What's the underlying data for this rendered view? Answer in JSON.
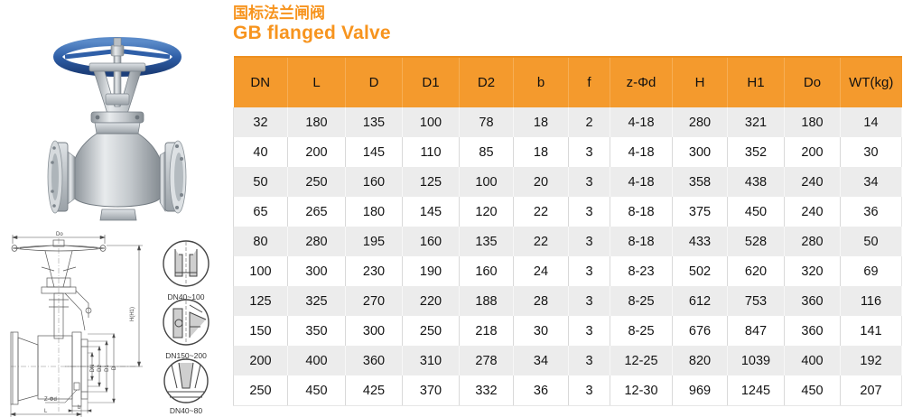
{
  "title": {
    "zh": "国标法兰闸阀",
    "en": "GB flanged Valve",
    "color": "#f7941e"
  },
  "table": {
    "header_bg": "#f49a2d",
    "stripe_bg": "#ececec",
    "columns": [
      "DN",
      "L",
      "D",
      "D1",
      "D2",
      "b",
      "f",
      "z-Φd",
      "H",
      "H1",
      "Do",
      "WT(kg)"
    ],
    "rows": [
      [
        "32",
        "180",
        "135",
        "100",
        "78",
        "18",
        "2",
        "4-18",
        "280",
        "321",
        "180",
        "14"
      ],
      [
        "40",
        "200",
        "145",
        "110",
        "85",
        "18",
        "3",
        "4-18",
        "300",
        "352",
        "200",
        "30"
      ],
      [
        "50",
        "250",
        "160",
        "125",
        "100",
        "20",
        "3",
        "4-18",
        "358",
        "438",
        "240",
        "34"
      ],
      [
        "65",
        "265",
        "180",
        "145",
        "120",
        "22",
        "3",
        "8-18",
        "375",
        "450",
        "240",
        "36"
      ],
      [
        "80",
        "280",
        "195",
        "160",
        "135",
        "22",
        "3",
        "8-18",
        "433",
        "528",
        "280",
        "50"
      ],
      [
        "100",
        "300",
        "230",
        "190",
        "160",
        "24",
        "3",
        "8-23",
        "502",
        "620",
        "320",
        "69"
      ],
      [
        "125",
        "325",
        "270",
        "220",
        "188",
        "28",
        "3",
        "8-25",
        "612",
        "753",
        "360",
        "116"
      ],
      [
        "150",
        "350",
        "300",
        "250",
        "218",
        "30",
        "3",
        "8-25",
        "676",
        "847",
        "360",
        "141"
      ],
      [
        "200",
        "400",
        "360",
        "310",
        "278",
        "34",
        "3",
        "12-25",
        "820",
        "1039",
        "400",
        "192"
      ],
      [
        "250",
        "450",
        "425",
        "370",
        "332",
        "36",
        "3",
        "12-30",
        "969",
        "1245",
        "450",
        "207"
      ]
    ]
  },
  "diagram": {
    "top_dim": "Do",
    "height_dim": "H(H1)",
    "bolt_dim": "Z-Φd",
    "b_dim": "b",
    "l_dim": "L",
    "flange_dims": [
      "DN",
      "D2",
      "D1",
      "D"
    ],
    "details": [
      "DN40~100",
      "DN150~200",
      "DN40~80"
    ]
  }
}
